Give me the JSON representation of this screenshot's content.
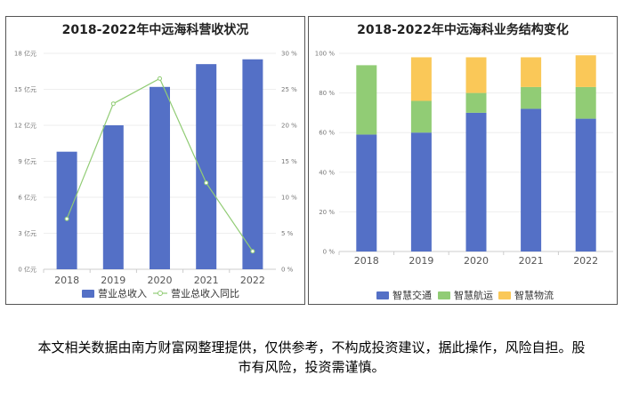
{
  "chart_data": [
    {
      "type": "bar",
      "title": "2018-2022年中远海科营收状况",
      "categories": [
        "2018",
        "2019",
        "2020",
        "2021",
        "2022"
      ],
      "series": [
        {
          "name": "营业总收入",
          "type": "bar",
          "axis": "left",
          "values": [
            9.8,
            12.0,
            15.2,
            17.1,
            17.5
          ],
          "color": "#5470c6"
        },
        {
          "name": "营业总收入同比",
          "type": "line",
          "axis": "right",
          "values": [
            7.0,
            23.0,
            26.5,
            12.0,
            2.5
          ],
          "color": "#91cc75"
        }
      ],
      "y_left": {
        "ticks": [
          0,
          3,
          6,
          9,
          12,
          15,
          18
        ],
        "unit": "亿元",
        "ylim": [
          0,
          18
        ]
      },
      "y_right": {
        "ticks": [
          0,
          5,
          10,
          15,
          20,
          25,
          30
        ],
        "unit": "%",
        "ylim": [
          0,
          30
        ]
      },
      "legend": "bottom"
    },
    {
      "type": "bar",
      "stacked": true,
      "title": "2018-2022年中远海科业务结构变化",
      "categories": [
        "2018",
        "2019",
        "2020",
        "2021",
        "2022"
      ],
      "series": [
        {
          "name": "智慧交通",
          "values": [
            59,
            60,
            70,
            72,
            67
          ],
          "color": "#5470c6"
        },
        {
          "name": "智慧航运",
          "values": [
            35,
            16,
            10,
            11,
            16
          ],
          "color": "#91cc75"
        },
        {
          "name": "智慧物流",
          "values": [
            0,
            22,
            18,
            15,
            16
          ],
          "color": "#fac858"
        }
      ],
      "y": {
        "ticks": [
          0,
          20,
          40,
          60,
          80,
          100
        ],
        "unit": "%",
        "ylim": [
          0,
          100
        ]
      },
      "legend": "bottom"
    }
  ],
  "disclaimer": "本文相关数据由南方财富网整理提供，仅供参考，不构成投资建议，据此操作，风险自担。股市有风险，投资需谨慎。"
}
